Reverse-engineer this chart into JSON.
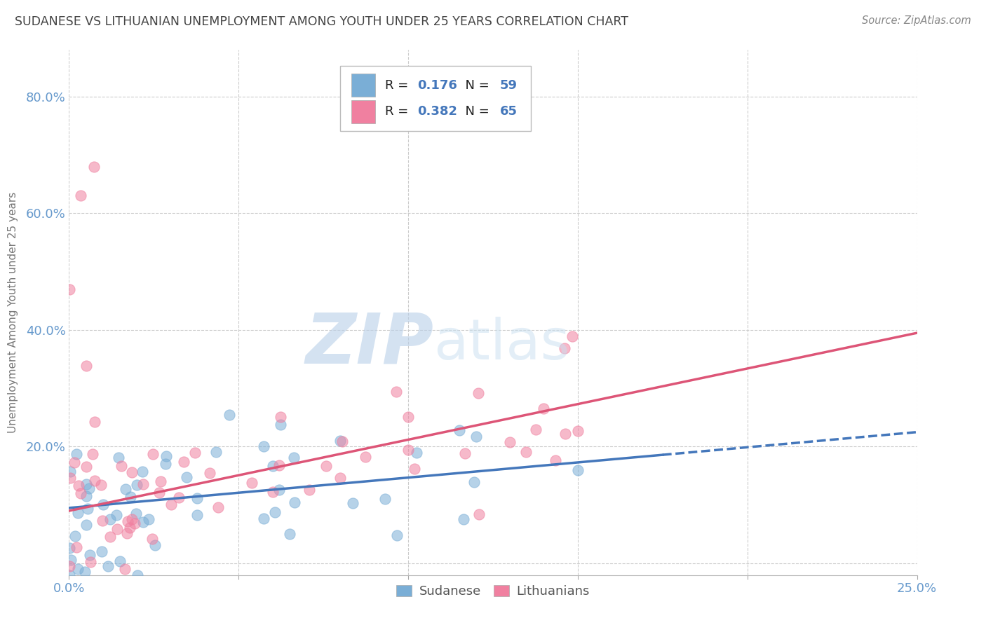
{
  "title": "SUDANESE VS LITHUANIAN UNEMPLOYMENT AMONG YOUTH UNDER 25 YEARS CORRELATION CHART",
  "source": "Source: ZipAtlas.com",
  "ylabel": "Unemployment Among Youth under 25 years",
  "yticks": [
    0.0,
    0.2,
    0.4,
    0.6,
    0.8
  ],
  "ytick_labels": [
    "",
    "20.0%",
    "40.0%",
    "60.0%",
    "80.0%"
  ],
  "xtick_labels": [
    "0.0%",
    "",
    "",
    "",
    "",
    "25.0%"
  ],
  "xticks": [
    0.0,
    0.05,
    0.1,
    0.15,
    0.2,
    0.25
  ],
  "xlim": [
    0.0,
    0.25
  ],
  "ylim": [
    -0.02,
    0.88
  ],
  "blue_color": "#7aaed6",
  "pink_color": "#f080a0",
  "blue_line_color": "#4477bb",
  "pink_line_color": "#dd5577",
  "watermark_zip": "ZIP",
  "watermark_atlas": "atlas",
  "background_color": "#ffffff",
  "grid_color": "#cccccc",
  "title_color": "#444444",
  "axis_label_color": "#6699cc",
  "legend_r_color": "#222222",
  "legend_n_color": "#222222",
  "legend_val_color": "#4477bb",
  "r_sud": "0.176",
  "n_sud": "59",
  "r_lit": "0.382",
  "n_lit": "65"
}
